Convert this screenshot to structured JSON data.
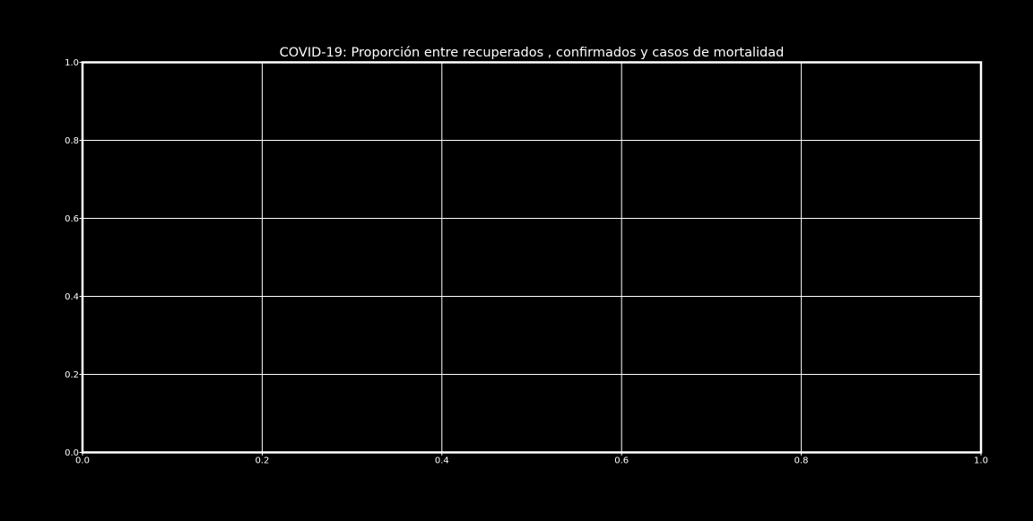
{
  "chart_data": {
    "type": "line",
    "title": "COVID-19: Proporción entre recuperados , confirmados y casos de mortalidad",
    "xlabel": "",
    "ylabel": "",
    "xlim": [
      0.0,
      1.0
    ],
    "ylim": [
      0.0,
      1.0
    ],
    "xticks": [
      "0.0",
      "0.2",
      "0.4",
      "0.6",
      "0.8",
      "1.0"
    ],
    "yticks": [
      "0.0",
      "0.2",
      "0.4",
      "0.6",
      "0.8",
      "1.0"
    ],
    "grid": true,
    "series": []
  },
  "colors": {
    "background": "#000000",
    "axes": "#ffffff",
    "grid": "#ffffff",
    "text": "#ffffff"
  }
}
